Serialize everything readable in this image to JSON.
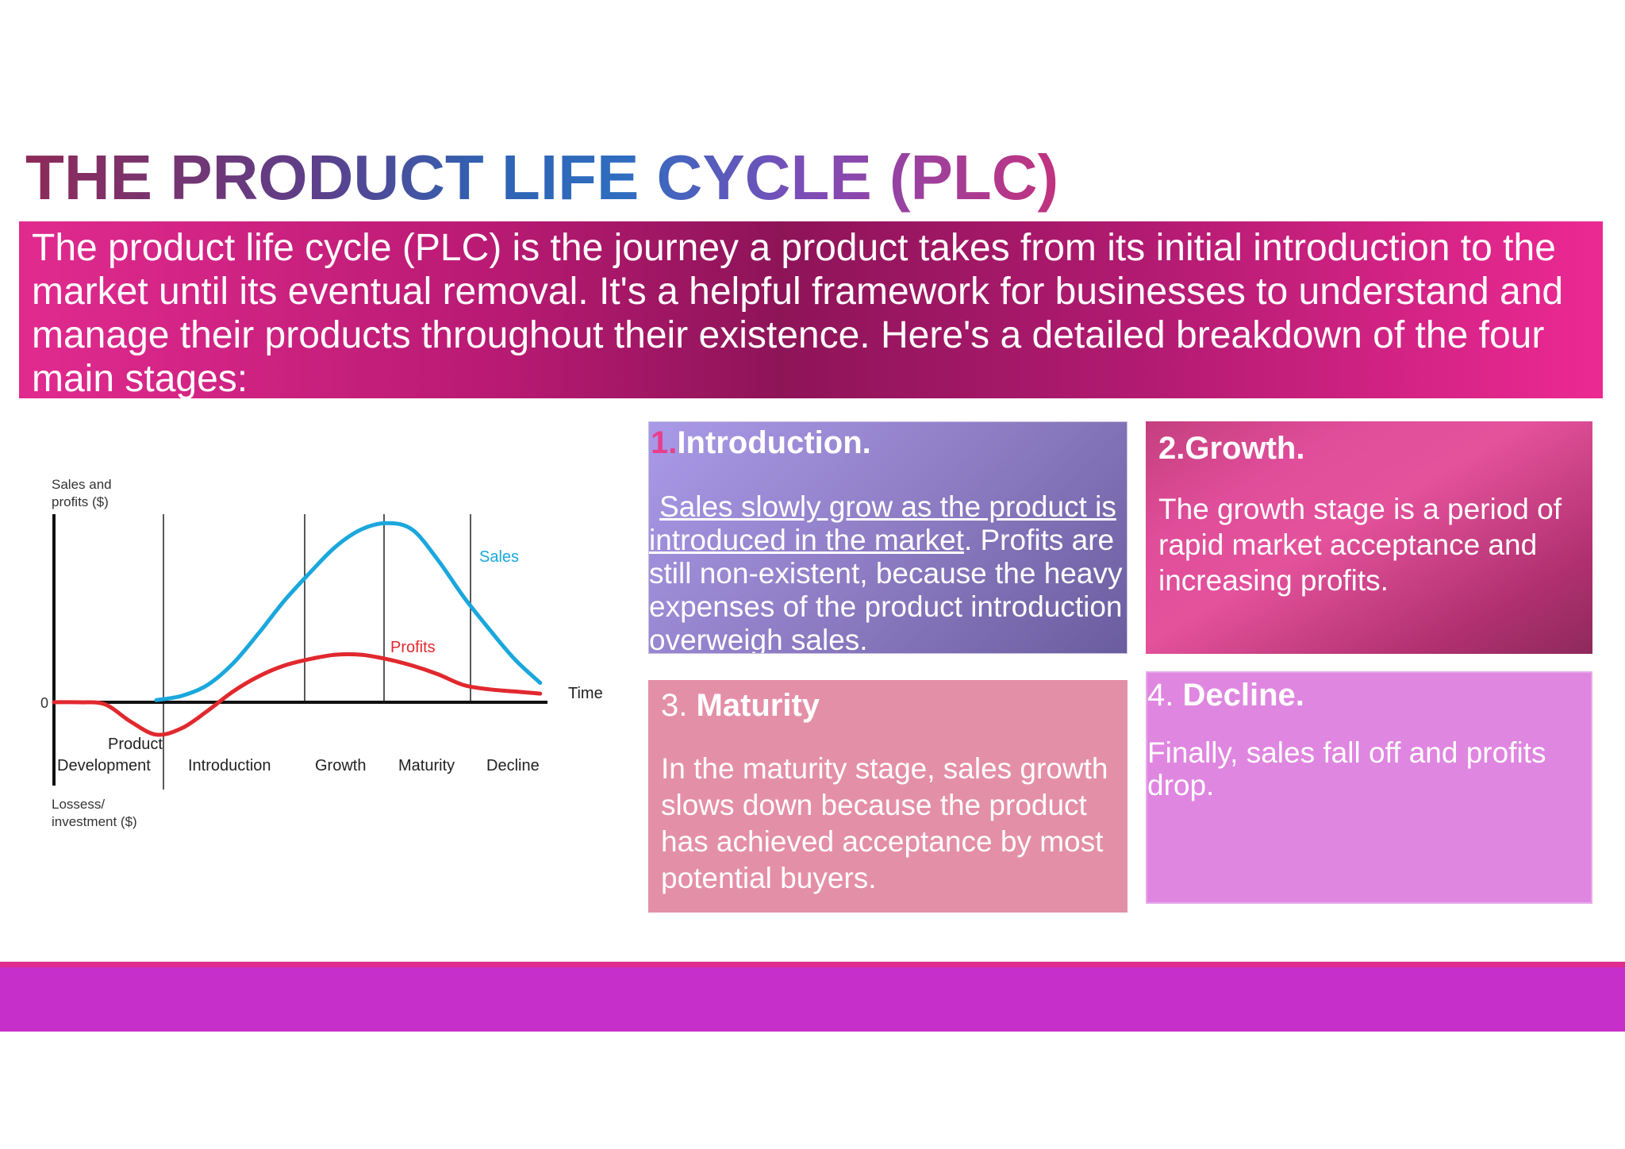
{
  "title": {
    "text": "THE PRODUCT LIFE CYCLE (PLC)"
  },
  "intro": {
    "text": "The product life cycle (PLC) is the journey a product takes from its initial introduction to the market until its eventual removal. It's a helpful framework for businesses to understand and manage their products throughout their existence. Here's a detailed breakdown of the four main stages:"
  },
  "stages": [
    {
      "number": "1.",
      "heading": "Introduction.",
      "underlined": "Sales slowly grow as the product is introduced in the market",
      "body": ". Profits are still non-existent, because the heavy expenses of the product introduction overweigh sales."
    },
    {
      "number": "2.",
      "heading": "Growth.",
      "body": "The growth stage is a period of rapid market acceptance and increasing profits."
    },
    {
      "number": "3. ",
      "heading": "Maturity",
      "body": "In the maturity stage, sales growth slows down because the product has achieved acceptance by most potential buyers."
    },
    {
      "number": "4. ",
      "heading": "Decline.",
      "body": "Finally, sales fall off and profits drop."
    }
  ],
  "chart": {
    "y_label_top_1": "Sales and",
    "y_label_top_2": "profits ($)",
    "y_label_bottom_1": "Lossess/",
    "y_label_bottom_2": "investment ($)",
    "zero_label": "0",
    "x_label": "Time",
    "stage_pd_1": "Product",
    "stage_pd_2": "Development"
  },
  "chart_data": {
    "type": "line",
    "title": "",
    "xlabel": "Time",
    "ylabel": "Sales and profits ($)",
    "categories": [
      "Product Development",
      "Introduction",
      "Growth",
      "Maturity",
      "Decline"
    ],
    "x": [
      0,
      0.5,
      1,
      1.5,
      2,
      2.5,
      3,
      3.5,
      4,
      4.5,
      5,
      5.5,
      6,
      6.5,
      7,
      7.5,
      8,
      8.5,
      9,
      9.5,
      10
    ],
    "series": [
      {
        "name": "Sales",
        "color": "#1aa7dc",
        "values": [
          null,
          null,
          null,
          null,
          0.1,
          0.3,
          0.8,
          1.8,
          3.2,
          4.7,
          6.0,
          7.2,
          8.0,
          8.3,
          8.0,
          6.6,
          4.9,
          3.4,
          2.0,
          0.9,
          null
        ]
      },
      {
        "name": "Profits",
        "color": "#e0292e",
        "values": [
          0,
          0,
          -0.1,
          -0.9,
          -1.5,
          -1.2,
          -0.4,
          0.5,
          1.2,
          1.7,
          2.0,
          2.2,
          2.2,
          2.0,
          1.7,
          1.3,
          0.8,
          0.6,
          0.5,
          0.4,
          null
        ]
      }
    ],
    "ylim": [
      -3,
      9
    ],
    "grid": false,
    "legend": "inline labels"
  },
  "colors": {
    "sales": "#1aa7dc",
    "profits": "#e0292e",
    "intro_band": "#b91a73",
    "footer": "#c62fc9",
    "number_accent": "#e83e8c"
  }
}
